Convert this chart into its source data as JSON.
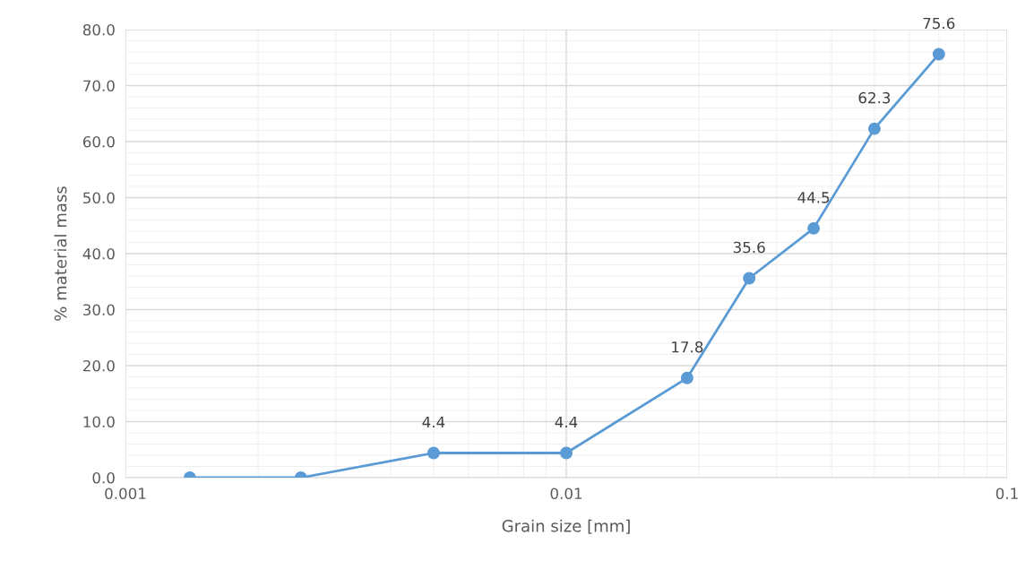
{
  "chart_data": {
    "type": "line",
    "xlabel": "Grain size [mm]",
    "ylabel": "% material mass",
    "x": [
      0.0014,
      0.0025,
      0.005,
      0.01,
      0.0188,
      0.026,
      0.0364,
      0.05,
      0.07
    ],
    "series": [
      {
        "color": "#5b9bd5",
        "values": [
          0.0,
          0.0,
          4.4,
          4.4,
          17.8,
          35.6,
          44.5,
          62.3,
          75.6
        ],
        "value_labels": [
          null,
          null,
          "4.4",
          "4.4",
          "17.8",
          "35.6",
          "44.5",
          "62.3",
          "75.6"
        ]
      }
    ],
    "log": "x",
    "xlim": [
      0.001,
      0.1
    ],
    "xticks": [
      0.001,
      0.01,
      0.1
    ],
    "ylim": [
      0,
      80
    ],
    "yticks": [
      {
        "value": 0,
        "label": "0.0"
      },
      {
        "value": 10,
        "label": "10.0"
      },
      {
        "value": 20,
        "label": "20.0"
      },
      {
        "value": 30,
        "label": "30.0"
      },
      {
        "value": 40,
        "label": "40.0"
      },
      {
        "value": 50,
        "label": "50.0"
      },
      {
        "value": 60,
        "label": "60.0"
      },
      {
        "value": 70,
        "label": "70.0"
      },
      {
        "value": 80,
        "label": "80.0"
      }
    ],
    "grid": true,
    "marker": "circle",
    "line_style": "solid"
  }
}
